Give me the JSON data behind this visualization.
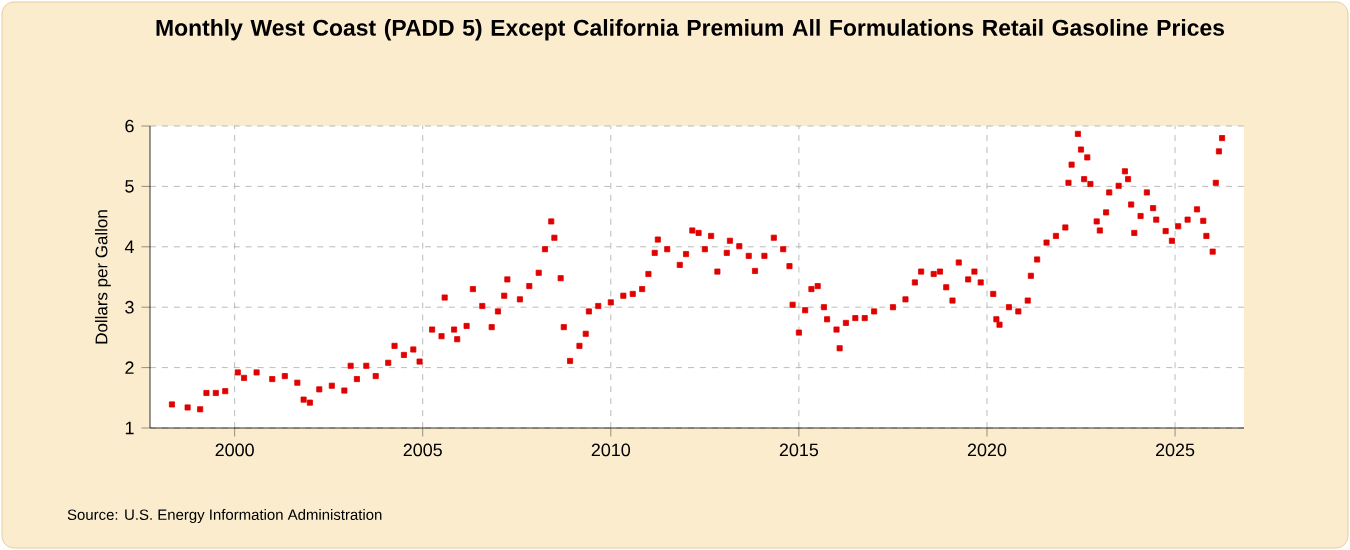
{
  "chart_data": {
    "type": "scatter",
    "title": "Monthly West Coast (PADD 5) Except California Premium All Formulations Retail Gasoline Prices",
    "ylabel": "Dollars per Gallon",
    "annotations": [
      "Source: U.S. Energy Information Administration"
    ],
    "xlim": [
      "1997-10",
      "2026-11"
    ],
    "xticks": [
      "2000",
      "2005",
      "2010",
      "2015",
      "2020",
      "2025"
    ],
    "ylim": [
      1,
      6
    ],
    "yticks": [
      1,
      2,
      3,
      4,
      5,
      6
    ],
    "grid": true,
    "marker": "square",
    "series": [
      {
        "color": "#e00000",
        "x": [
          "1998-05",
          "1998-10",
          "1999-02",
          "1999-04",
          "1999-07",
          "1999-10",
          "2000-02",
          "2000-04",
          "2000-08",
          "2001-01",
          "2001-05",
          "2001-09",
          "2001-11",
          "2002-01",
          "2002-04",
          "2002-08",
          "2002-12",
          "2003-02",
          "2003-04",
          "2003-07",
          "2003-10",
          "2004-02",
          "2004-04",
          "2004-07",
          "2004-10",
          "2004-12",
          "2005-04",
          "2005-07",
          "2005-08",
          "2005-11",
          "2005-12",
          "2006-03",
          "2006-05",
          "2006-08",
          "2006-11",
          "2007-01",
          "2007-03",
          "2007-04",
          "2007-08",
          "2007-11",
          "2008-02",
          "2008-04",
          "2008-06",
          "2008-07",
          "2008-09",
          "2008-10",
          "2008-12",
          "2009-03",
          "2009-05",
          "2009-06",
          "2009-09",
          "2010-01",
          "2010-05",
          "2010-08",
          "2010-11",
          "2011-01",
          "2011-03",
          "2011-04",
          "2011-07",
          "2011-11",
          "2012-01",
          "2012-03",
          "2012-05",
          "2012-07",
          "2012-09",
          "2012-11",
          "2013-02",
          "2013-03",
          "2013-06",
          "2013-09",
          "2013-11",
          "2014-02",
          "2014-05",
          "2014-08",
          "2014-10",
          "2014-11",
          "2015-01",
          "2015-03",
          "2015-05",
          "2015-07",
          "2015-09",
          "2015-10",
          "2016-01",
          "2016-02",
          "2016-04",
          "2016-07",
          "2016-10",
          "2017-01",
          "2017-07",
          "2017-11",
          "2018-02",
          "2018-04",
          "2018-08",
          "2018-10",
          "2018-12",
          "2019-02",
          "2019-04",
          "2019-07",
          "2019-09",
          "2019-11",
          "2020-03",
          "2020-04",
          "2020-05",
          "2020-08",
          "2020-11",
          "2021-02",
          "2021-03",
          "2021-05",
          "2021-08",
          "2021-11",
          "2022-02",
          "2022-03",
          "2022-04",
          "2022-06",
          "2022-07",
          "2022-08",
          "2022-09",
          "2022-10",
          "2022-12",
          "2023-01",
          "2023-03",
          "2023-04",
          "2023-07",
          "2023-09",
          "2023-10",
          "2023-11",
          "2023-12",
          "2024-02",
          "2024-04",
          "2024-06",
          "2024-07",
          "2024-10",
          "2024-12",
          "2025-02",
          "2025-05",
          "2025-08",
          "2025-10",
          "2025-11",
          "2026-01",
          "2026-02",
          "2026-03",
          "2026-04"
        ],
        "values": [
          1.39,
          1.34,
          1.31,
          1.58,
          1.58,
          1.61,
          1.92,
          1.83,
          1.92,
          1.81,
          1.86,
          1.75,
          1.47,
          1.42,
          1.64,
          1.7,
          1.62,
          2.03,
          1.81,
          2.03,
          1.86,
          2.08,
          2.36,
          2.21,
          2.3,
          2.1,
          2.63,
          2.52,
          3.16,
          2.63,
          2.47,
          2.69,
          3.3,
          3.02,
          2.67,
          2.93,
          3.19,
          3.46,
          3.13,
          3.35,
          3.57,
          3.96,
          4.42,
          4.15,
          3.48,
          2.67,
          2.11,
          2.36,
          2.56,
          2.93,
          3.02,
          3.08,
          3.19,
          3.22,
          3.3,
          3.55,
          3.9,
          4.12,
          3.96,
          3.7,
          3.88,
          4.27,
          4.23,
          3.96,
          4.18,
          3.59,
          3.9,
          4.1,
          4.01,
          3.85,
          3.6,
          3.85,
          4.15,
          3.96,
          3.68,
          3.04,
          2.58,
          2.95,
          3.3,
          3.35,
          3.0,
          2.8,
          2.63,
          2.32,
          2.74,
          2.82,
          2.82,
          2.93,
          3.0,
          3.13,
          3.41,
          3.59,
          3.55,
          3.59,
          3.33,
          3.11,
          3.74,
          3.46,
          3.59,
          3.41,
          3.22,
          2.8,
          2.71,
          3.0,
          2.93,
          3.11,
          3.52,
          3.79,
          4.07,
          4.18,
          4.32,
          5.06,
          5.36,
          5.87,
          5.61,
          5.12,
          5.48,
          5.04,
          4.42,
          4.27,
          4.57,
          4.9,
          5.01,
          5.25,
          5.12,
          4.7,
          4.23,
          4.51,
          4.9,
          4.64,
          4.45,
          4.26,
          4.1,
          4.34,
          4.45,
          4.62,
          4.43,
          4.18,
          3.92,
          5.06,
          5.58,
          5.8
        ]
      }
    ]
  }
}
